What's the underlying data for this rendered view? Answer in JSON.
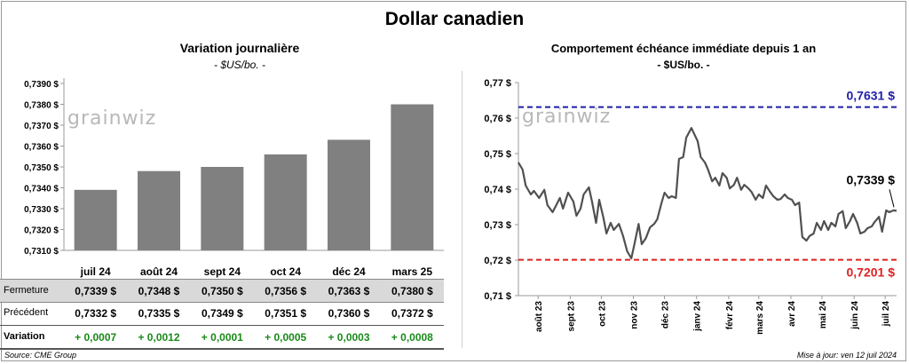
{
  "title": "Dollar canadien",
  "left_chart": {
    "title": "Variation  journalière",
    "subtitle": "- $US/bo. -",
    "watermark": "grainwiz"
  },
  "right_chart": {
    "title": "Comportement échéance immédiate depuis 1 an",
    "subtitle": "- $US/bo. -",
    "watermark": "grainwiz",
    "annotations": {
      "high": "0,7631 $",
      "low": "0,7201 $",
      "last": "0,7339 $"
    }
  },
  "table": {
    "rows": [
      {
        "label": "Fermeture",
        "values": [
          "0,7339  $",
          "0,7348  $",
          "0,7350  $",
          "0,7356  $",
          "0,7363  $",
          "0,7380  $"
        ]
      },
      {
        "label": "Précédent",
        "values": [
          "0,7332  $",
          "0,7335  $",
          "0,7349  $",
          "0,7351  $",
          "0,7360  $",
          "0,7372  $"
        ]
      },
      {
        "label": "Variation",
        "values": [
          "+ 0,0007",
          "+ 0,0012",
          "+ 0,0001",
          "+ 0,0005",
          "+ 0,0003",
          "+ 0,0008"
        ]
      }
    ]
  },
  "footer": {
    "source": "Source: CME Group",
    "updated": "Mise à jour: ven 12 juil 2024"
  },
  "colors": {
    "bar": "#808080",
    "line": "#505050",
    "high": "#1f1fa8",
    "low": "#e02020",
    "positive": "#1a8a1a",
    "fermeture_bg": "#d9d9d9"
  },
  "chart_data": [
    {
      "type": "bar",
      "categories": [
        "juil 24",
        "août 24",
        "sept 24",
        "oct 24",
        "déc 24",
        "mars 25"
      ],
      "values": [
        0.7339,
        0.7348,
        0.735,
        0.7356,
        0.7363,
        0.738
      ],
      "ylim": [
        0.731,
        0.739
      ],
      "ytick_labels": [
        "0,7310 $",
        "0,7320 $",
        "0,7330 $",
        "0,7340 $",
        "0,7350 $",
        "0,7360 $",
        "0,7370 $",
        "0,7380 $",
        "0,7390 $"
      ]
    },
    {
      "type": "line",
      "ylim": [
        0.71,
        0.77
      ],
      "ytick_labels": [
        "0,71 $",
        "0,72 $",
        "0,73 $",
        "0,74 $",
        "0,75 $",
        "0,76 $",
        "0,77 $"
      ],
      "xtick_labels": [
        "août 23",
        "sept 23",
        "oct 23",
        "nov 23",
        "déc 23",
        "janv 24",
        "févr 24",
        "mars 24",
        "avr 24",
        "mai 24",
        "juin 24",
        "juil 24"
      ],
      "high_line": 0.7631,
      "low_line": 0.7201,
      "x_range": [
        "2023-07-13",
        "2024-07-12"
      ],
      "series": [
        {
          "values": [
            [
              "2023-07-13",
              0.7475
            ],
            [
              "2023-07-17",
              0.7455
            ],
            [
              "2023-07-20",
              0.741
            ],
            [
              "2023-07-25",
              0.7385
            ],
            [
              "2023-07-28",
              0.7395
            ],
            [
              "2023-08-02",
              0.7375
            ],
            [
              "2023-08-07",
              0.7398
            ],
            [
              "2023-08-10",
              0.7355
            ],
            [
              "2023-08-15",
              0.7335
            ],
            [
              "2023-08-18",
              0.7352
            ],
            [
              "2023-08-22",
              0.7375
            ],
            [
              "2023-08-25",
              0.7345
            ],
            [
              "2023-08-30",
              0.739
            ],
            [
              "2023-09-04",
              0.7365
            ],
            [
              "2023-09-07",
              0.7325
            ],
            [
              "2023-09-11",
              0.7345
            ],
            [
              "2023-09-14",
              0.7385
            ],
            [
              "2023-09-19",
              0.7405
            ],
            [
              "2023-09-22",
              0.7365
            ],
            [
              "2023-09-26",
              0.7305
            ],
            [
              "2023-09-29",
              0.737
            ],
            [
              "2023-10-03",
              0.732
            ],
            [
              "2023-10-06",
              0.7275
            ],
            [
              "2023-10-10",
              0.7305
            ],
            [
              "2023-10-13",
              0.7285
            ],
            [
              "2023-10-18",
              0.7302
            ],
            [
              "2023-10-22",
              0.7268
            ],
            [
              "2023-10-26",
              0.7225
            ],
            [
              "2023-10-30",
              0.7205
            ],
            [
              "2023-11-02",
              0.7245
            ],
            [
              "2023-11-06",
              0.7302
            ],
            [
              "2023-11-09",
              0.7245
            ],
            [
              "2023-11-13",
              0.7262
            ],
            [
              "2023-11-17",
              0.7292
            ],
            [
              "2023-11-21",
              0.7302
            ],
            [
              "2023-11-24",
              0.7315
            ],
            [
              "2023-11-28",
              0.736
            ],
            [
              "2023-12-01",
              0.739
            ],
            [
              "2023-12-05",
              0.7375
            ],
            [
              "2023-12-08",
              0.738
            ],
            [
              "2023-12-12",
              0.7375
            ],
            [
              "2023-12-15",
              0.7485
            ],
            [
              "2023-12-19",
              0.749
            ],
            [
              "2023-12-22",
              0.7545
            ],
            [
              "2023-12-27",
              0.7572
            ],
            [
              "2024-01-02",
              0.7535
            ],
            [
              "2024-01-05",
              0.749
            ],
            [
              "2024-01-09",
              0.7475
            ],
            [
              "2024-01-12",
              0.7455
            ],
            [
              "2024-01-16",
              0.7422
            ],
            [
              "2024-01-19",
              0.7432
            ],
            [
              "2024-01-23",
              0.741
            ],
            [
              "2024-01-26",
              0.7445
            ],
            [
              "2024-01-30",
              0.7432
            ],
            [
              "2024-02-02",
              0.7402
            ],
            [
              "2024-02-06",
              0.7412
            ],
            [
              "2024-02-09",
              0.7432
            ],
            [
              "2024-02-13",
              0.7398
            ],
            [
              "2024-02-16",
              0.7412
            ],
            [
              "2024-02-20",
              0.7402
            ],
            [
              "2024-02-23",
              0.7392
            ],
            [
              "2024-02-27",
              0.737
            ],
            [
              "2024-03-01",
              0.7385
            ],
            [
              "2024-03-05",
              0.7375
            ],
            [
              "2024-03-08",
              0.741
            ],
            [
              "2024-03-12",
              0.7392
            ],
            [
              "2024-03-15",
              0.738
            ],
            [
              "2024-03-19",
              0.737
            ],
            [
              "2024-03-22",
              0.7372
            ],
            [
              "2024-03-26",
              0.7385
            ],
            [
              "2024-03-29",
              0.7375
            ],
            [
              "2024-04-02",
              0.737
            ],
            [
              "2024-04-05",
              0.7355
            ],
            [
              "2024-04-09",
              0.7362
            ],
            [
              "2024-04-12",
              0.7265
            ],
            [
              "2024-04-16",
              0.7255
            ],
            [
              "2024-04-19",
              0.7268
            ],
            [
              "2024-04-23",
              0.7275
            ],
            [
              "2024-04-26",
              0.7305
            ],
            [
              "2024-04-30",
              0.7285
            ],
            [
              "2024-05-03",
              0.731
            ],
            [
              "2024-05-07",
              0.7285
            ],
            [
              "2024-05-10",
              0.7305
            ],
            [
              "2024-05-14",
              0.7295
            ],
            [
              "2024-05-17",
              0.733
            ],
            [
              "2024-05-21",
              0.7338
            ],
            [
              "2024-05-24",
              0.729
            ],
            [
              "2024-05-28",
              0.731
            ],
            [
              "2024-05-31",
              0.733
            ],
            [
              "2024-06-04",
              0.7305
            ],
            [
              "2024-06-07",
              0.7275
            ],
            [
              "2024-06-11",
              0.728
            ],
            [
              "2024-06-14",
              0.729
            ],
            [
              "2024-06-18",
              0.7295
            ],
            [
              "2024-06-21",
              0.7308
            ],
            [
              "2024-06-25",
              0.7322
            ],
            [
              "2024-06-28",
              0.728
            ],
            [
              "2024-07-02",
              0.734
            ],
            [
              "2024-07-05",
              0.7335
            ],
            [
              "2024-07-09",
              0.734
            ],
            [
              "2024-07-12",
              0.7339
            ]
          ]
        }
      ]
    }
  ]
}
